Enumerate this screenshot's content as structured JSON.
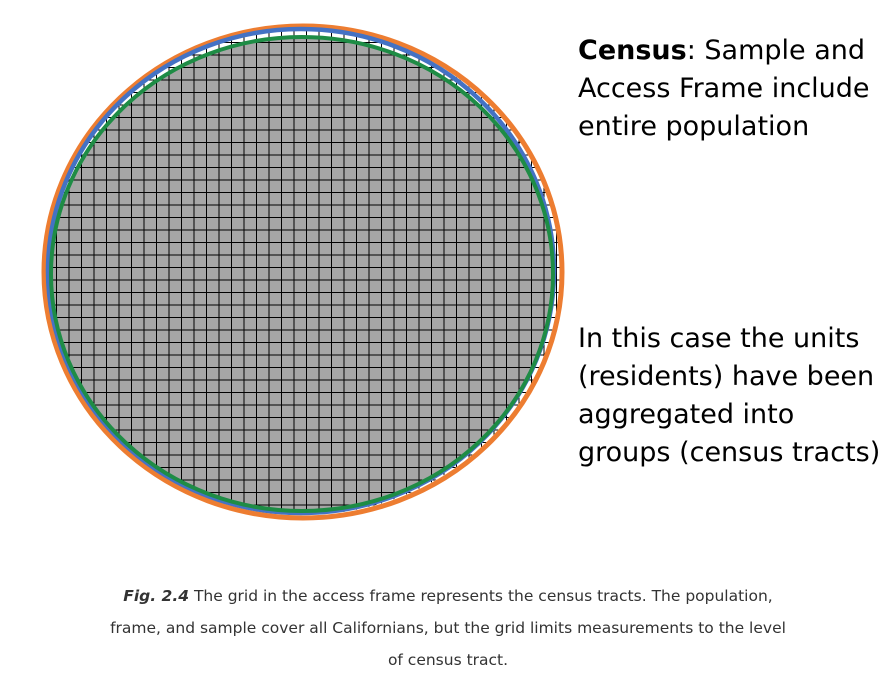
{
  "census_note": {
    "term": "Census",
    "text": ": Sample and Access Frame include entire population"
  },
  "aggregation_note": {
    "text": "In this case the units (residents) have been aggregated into groups (census tracts)"
  },
  "caption": {
    "label": "Fig. 2.4",
    "text": " The grid in the access frame represents the census tracts. The population, frame, and sample cover all Californians, but the grid limits measurements to the level of census tract."
  },
  "colors": {
    "population_ring": "#ED7D31",
    "frame_ring": "#4472C4",
    "sample_ring": "#1E8C45",
    "grid_fill": "#A6A6A6",
    "grid_lines": "#000000"
  }
}
